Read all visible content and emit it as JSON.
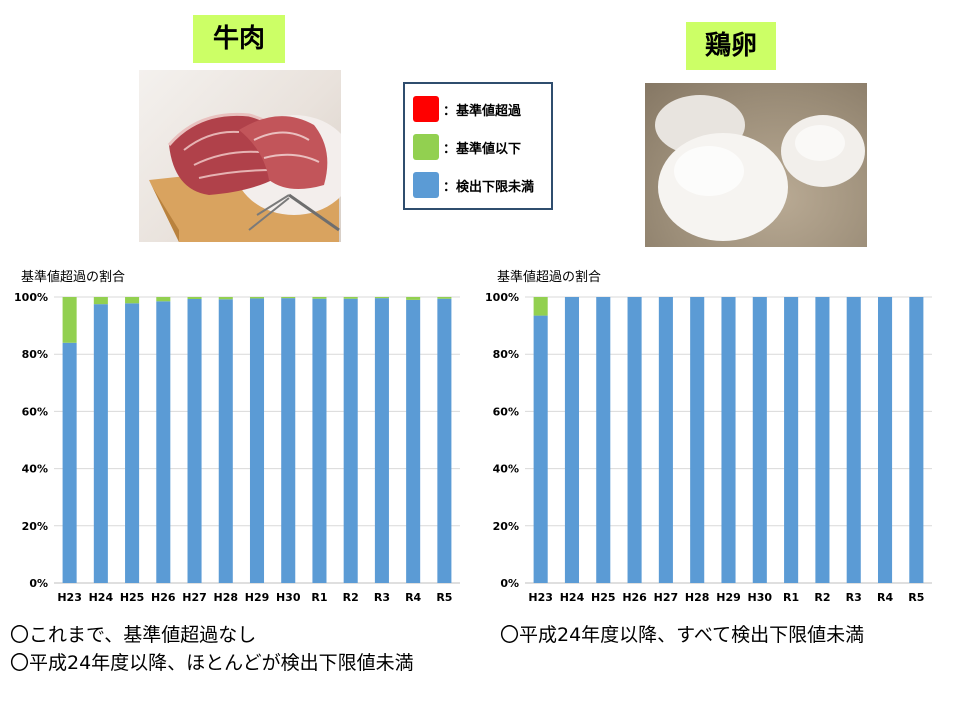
{
  "beef": {
    "title": "牛肉",
    "chart_title": "基準値超過の割合",
    "notes": [
      "〇これまで、基準値超過なし",
      "〇平成24年度以降、ほとんどが検出下限値未満"
    ]
  },
  "egg": {
    "title": "鶏卵",
    "chart_title": "基準値超過の割合",
    "notes": [
      "〇平成24年度以降、すべて検出下限値未満"
    ]
  },
  "legend": {
    "items": [
      {
        "label": "：基準値超過",
        "color": "#ff0000"
      },
      {
        "label": "：基準値以下",
        "color": "#92d050"
      },
      {
        "label": "：検出下限未満",
        "color": "#5b9bd5"
      }
    ]
  },
  "chart_data": [
    {
      "type": "bar",
      "stacked": true,
      "title": "基準値超過の割合",
      "categories": [
        "H23",
        "H24",
        "H25",
        "H26",
        "H27",
        "H28",
        "H29",
        "H30",
        "R1",
        "R2",
        "R3",
        "R4",
        "R5"
      ],
      "yticks": [
        "0%",
        "20%",
        "40%",
        "60%",
        "80%",
        "100%"
      ],
      "ylim": [
        0,
        100
      ],
      "grid": true,
      "series": [
        {
          "name": "検出下限未満",
          "color": "#5b9bd5",
          "values": [
            84,
            97.5,
            97.8,
            98.5,
            99.3,
            99.2,
            99.5,
            99.6,
            99.4,
            99.4,
            99.6,
            99.0,
            99.4
          ]
        },
        {
          "name": "基準値以下",
          "color": "#92d050",
          "values": [
            16,
            2.5,
            2.2,
            1.5,
            0.7,
            0.8,
            0.5,
            0.4,
            0.6,
            0.6,
            0.4,
            1.0,
            0.6
          ]
        },
        {
          "name": "基準値超過",
          "color": "#ff0000",
          "values": [
            0,
            0,
            0,
            0,
            0,
            0,
            0,
            0,
            0,
            0,
            0,
            0,
            0
          ]
        }
      ]
    },
    {
      "type": "bar",
      "stacked": true,
      "title": "基準値超過の割合",
      "categories": [
        "H23",
        "H24",
        "H25",
        "H26",
        "H27",
        "H28",
        "H29",
        "H30",
        "R1",
        "R2",
        "R3",
        "R4",
        "R5"
      ],
      "yticks": [
        "0%",
        "20%",
        "40%",
        "60%",
        "80%",
        "100%"
      ],
      "ylim": [
        0,
        100
      ],
      "grid": true,
      "series": [
        {
          "name": "検出下限未満",
          "color": "#5b9bd5",
          "values": [
            93.5,
            100,
            100,
            100,
            100,
            100,
            100,
            100,
            100,
            100,
            100,
            100,
            100
          ]
        },
        {
          "name": "基準値以下",
          "color": "#92d050",
          "values": [
            6.5,
            0,
            0,
            0,
            0,
            0,
            0,
            0,
            0,
            0,
            0,
            0,
            0
          ]
        },
        {
          "name": "基準値超過",
          "color": "#ff0000",
          "values": [
            0,
            0,
            0,
            0,
            0,
            0,
            0,
            0,
            0,
            0,
            0,
            0,
            0
          ]
        }
      ]
    }
  ]
}
